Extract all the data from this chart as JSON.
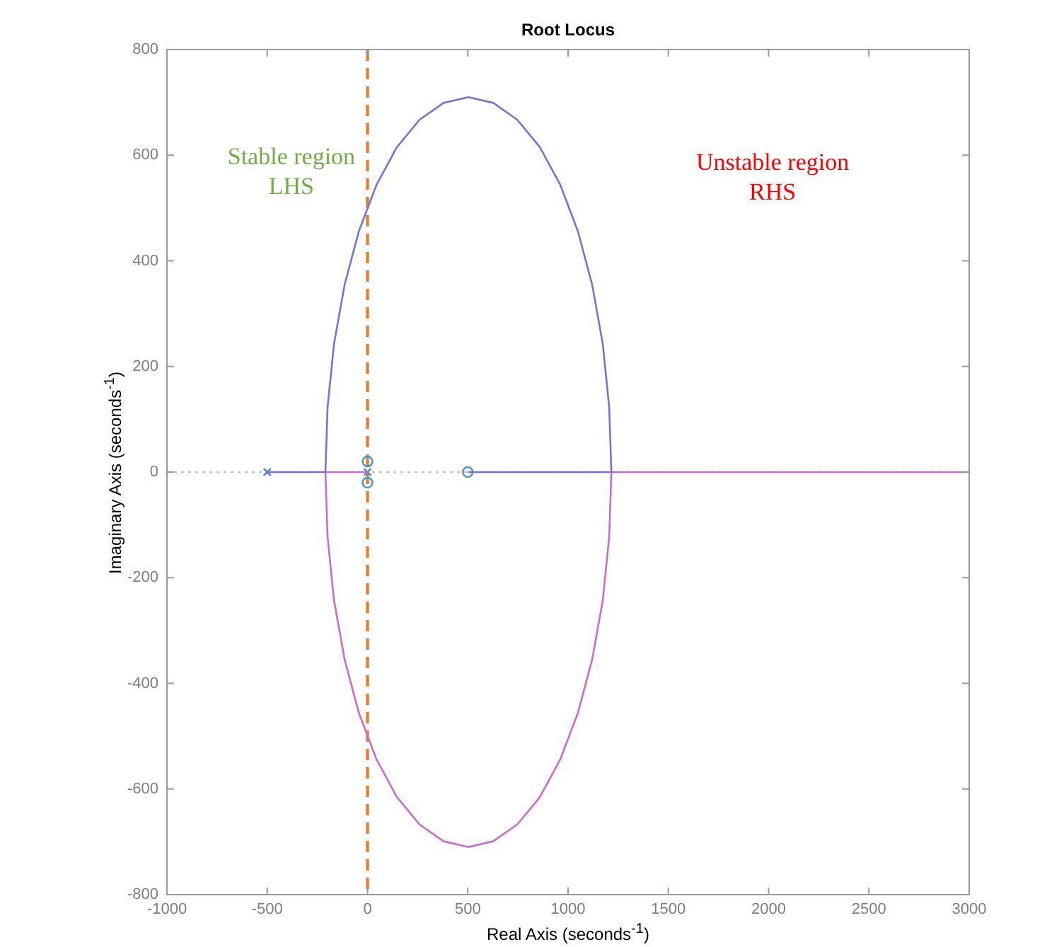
{
  "chart_data": {
    "type": "line",
    "title": "Root Locus",
    "xlabel": "Real Axis (seconds$^{-1}$)",
    "ylabel": "Imaginary Axis (seconds$^{-1}$)",
    "xlim": [
      -1000,
      3000
    ],
    "xticks": [
      -1000,
      -500,
      0,
      500,
      1000,
      1500,
      2000,
      2500,
      3000
    ],
    "ylim": [
      -800,
      800
    ],
    "yticks": [
      -800,
      -600,
      -400,
      -200,
      0,
      200,
      400,
      600,
      800
    ],
    "grid": false,
    "legend": false,
    "marker": "none",
    "line_style": "solid",
    "series": [
      {
        "type": "line",
        "color": "#7474d4",
        "x": [
          -500,
          -210,
          -199,
          -167,
          -114,
          -43,
          45,
          146,
          259,
          379,
          503,
          627,
          747,
          860,
          961,
          1049,
          1120,
          1173,
          1205,
          1216,
          500
        ],
        "values": [
          0,
          0,
          123,
          243,
          355,
          456,
          544,
          615,
          667,
          699,
          710,
          699,
          667,
          615,
          544,
          456,
          355,
          243,
          123,
          0,
          0
        ]
      },
      {
        "type": "line",
        "color": "#c96ccc",
        "x": [
          0,
          -210,
          -199,
          -167,
          -114,
          -43,
          45,
          146,
          259,
          379,
          503,
          627,
          747,
          860,
          961,
          1049,
          1120,
          1173,
          1205,
          1216,
          3000
        ],
        "values": [
          0,
          0,
          -123,
          -243,
          -355,
          -456,
          -544,
          -615,
          -667,
          -699,
          -710,
          -699,
          -667,
          -615,
          -544,
          -456,
          -355,
          -243,
          -123,
          0,
          0
        ]
      },
      {
        "type": "scatter",
        "marker": "cross",
        "color": "#4f86c6",
        "x": [
          -500,
          0
        ],
        "values": [
          0,
          0
        ]
      },
      {
        "type": "scatter",
        "marker": "circle",
        "color": "#4f9ac6",
        "x": [
          0,
          0,
          500
        ],
        "values": [
          20,
          -20,
          0
        ]
      }
    ],
    "ref_lines": [
      {
        "axis": "y",
        "value": 0,
        "color": "#c0c0c0",
        "line_style": "dotted"
      },
      {
        "axis": "x",
        "value": 0,
        "color": "#ed7d31",
        "line_style": "dashed"
      }
    ],
    "annotations": [
      "Stable region\nLHS",
      "Unstable region\nRHS"
    ]
  }
}
